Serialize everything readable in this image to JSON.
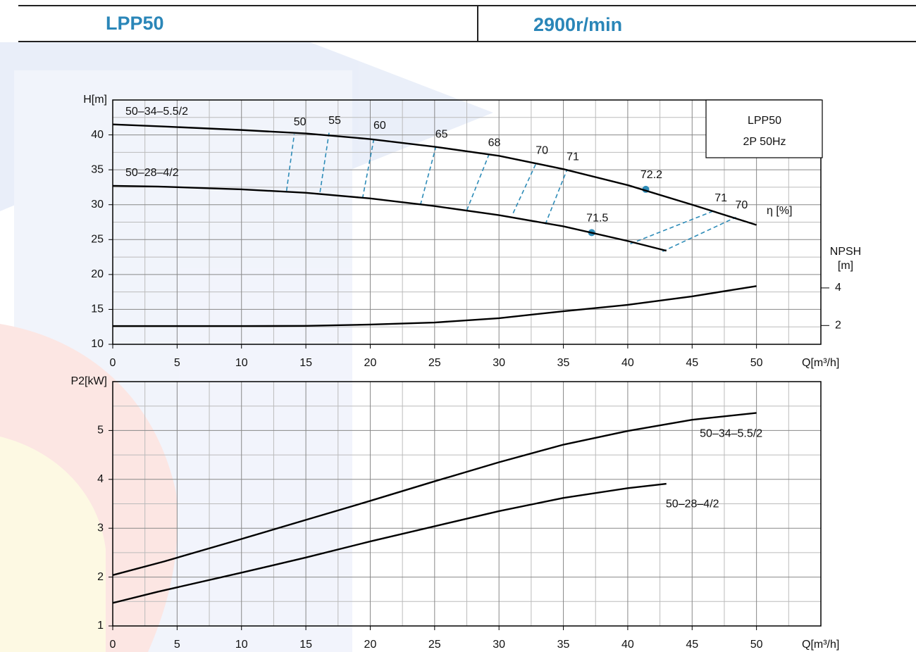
{
  "header": {
    "left": "LPP50",
    "right": "2900r/min"
  },
  "chart_data": [
    {
      "type": "line",
      "xlabel": "Q[m³/h]",
      "ylabel": "H[m]",
      "y2label": [
        "NPSH",
        "[m]"
      ],
      "box_title": "LPP50",
      "box_subtitle": "2P 50Hz",
      "xlim": [
        0,
        55
      ],
      "xticks": [
        0,
        5,
        10,
        15,
        20,
        25,
        30,
        35,
        40,
        45,
        50
      ],
      "ylim": [
        10,
        45
      ],
      "yticks": [
        10,
        15,
        20,
        25,
        30,
        35,
        40
      ],
      "y2lim": [
        1,
        14
      ],
      "y2ticks": [
        2,
        4
      ],
      "grid": true,
      "name_color": "#2e8cb8",
      "series": [
        {
          "name": "50–34–5.5/2",
          "color": "#000000",
          "x": [
            0,
            4,
            10,
            15,
            20,
            25,
            30,
            35,
            40,
            45,
            50
          ],
          "values": [
            41.5,
            41.2,
            40.7,
            40.2,
            39.4,
            38.3,
            37.0,
            35.1,
            32.8,
            30.0,
            27.1
          ]
        },
        {
          "name": "50–28–4/2",
          "color": "#000000",
          "x": [
            0,
            3.5,
            10,
            15,
            20,
            25,
            30,
            35,
            40,
            43
          ],
          "values": [
            32.7,
            32.6,
            32.2,
            31.7,
            30.9,
            29.8,
            28.5,
            26.9,
            24.8,
            23.4
          ]
        },
        {
          "axis": "y2",
          "color": "#000000",
          "x": [
            0,
            4,
            10,
            15,
            20,
            25,
            30,
            35,
            40,
            45,
            50
          ],
          "values": [
            1.97,
            1.97,
            1.97,
            1.98,
            2.05,
            2.16,
            2.39,
            2.76,
            3.1,
            3.55,
            4.1
          ]
        }
      ],
      "efficiency": {
        "label": "η [%]",
        "color": "#2e8cb8",
        "lines": [
          {
            "value": 50,
            "x": [
              13.5,
              14.1
            ],
            "y": [
              32.0,
              40.1
            ]
          },
          {
            "value": 55,
            "x": [
              16.1,
              16.8
            ],
            "y": [
              31.8,
              40.3
            ]
          },
          {
            "value": 60,
            "x": [
              19.4,
              20.3
            ],
            "y": [
              30.9,
              39.6
            ]
          },
          {
            "value": 65,
            "x": [
              23.9,
              25.1
            ],
            "y": [
              30.0,
              38.3
            ]
          },
          {
            "value": 68,
            "x": [
              27.5,
              29.2
            ],
            "y": [
              29.2,
              37.1
            ]
          },
          {
            "value": 70,
            "x": [
              31.1,
              32.9
            ],
            "y": [
              28.8,
              36.0
            ]
          },
          {
            "value": 71,
            "x": [
              33.6,
              35.3
            ],
            "y": [
              27.2,
              35.1
            ]
          },
          {
            "value": 71,
            "x": [
              40.2,
              46.8
            ],
            "y": [
              24.4,
              29.2
            ]
          },
          {
            "value": 70,
            "x": [
              42.7,
              48.4
            ],
            "y": [
              23.3,
              28.2
            ]
          }
        ],
        "points": [
          {
            "value": 72.2,
            "x": 41.4,
            "y": 32.2
          },
          {
            "value": 71.5,
            "x": 37.2,
            "y": 26.0
          }
        ]
      }
    },
    {
      "type": "line",
      "xlabel": "Q[m³/h]",
      "ylabel": "P2[kW]",
      "xlim": [
        0,
        55
      ],
      "xticks": [
        0,
        5,
        10,
        15,
        20,
        25,
        30,
        35,
        40,
        45,
        50
      ],
      "ylim": [
        1,
        6
      ],
      "yticks": [
        1,
        2,
        3,
        4,
        5
      ],
      "grid": true,
      "name_color": "#2e8cb8",
      "series": [
        {
          "name": "50–34–5.5/2",
          "color": "#000000",
          "x": [
            0,
            4,
            10,
            15,
            20,
            25,
            30,
            35,
            40,
            45,
            50
          ],
          "values": [
            2.04,
            2.32,
            2.78,
            3.17,
            3.56,
            3.96,
            4.35,
            4.71,
            4.99,
            5.22,
            5.36
          ]
        },
        {
          "name": "50–28–4/2",
          "color": "#000000",
          "x": [
            0,
            3.5,
            10,
            15,
            20,
            25,
            30,
            35,
            40,
            43
          ],
          "values": [
            1.47,
            1.7,
            2.09,
            2.4,
            2.73,
            3.04,
            3.35,
            3.62,
            3.82,
            3.91
          ]
        }
      ]
    }
  ]
}
